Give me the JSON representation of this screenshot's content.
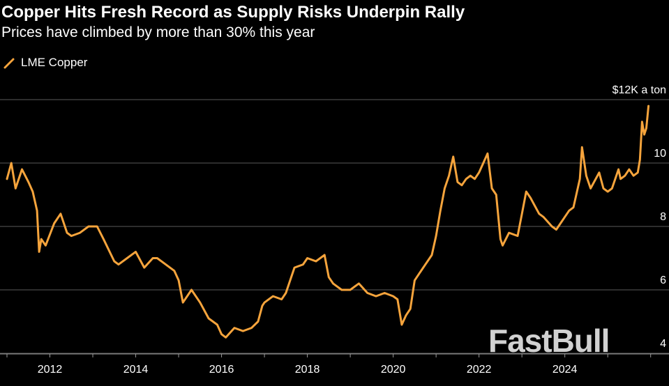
{
  "title": "Copper Hits Fresh Record as Supply Risks Underpin Rally",
  "subtitle": "Prices have climbed by more than 30% this year",
  "watermark": "FastBull",
  "colors": {
    "background": "#000000",
    "series": "#f6a43c",
    "gridline": "#5a5a5a",
    "text": "#ffffff"
  },
  "chart_data": {
    "type": "line",
    "title": "Copper Hits Fresh Record as Supply Risks Underpin Rally",
    "subtitle": "Prices have climbed by more than 30% this year",
    "xlabel": "",
    "ylabel": "",
    "unit_label": "$12K a ton",
    "xlim": [
      2011.0,
      2026.2
    ],
    "ylim": [
      4,
      12
    ],
    "yticks": [
      4,
      6,
      8,
      10,
      12
    ],
    "ytick_labels": [
      "4",
      "6",
      "8",
      "10",
      "$12K a ton"
    ],
    "xticks": [
      2012,
      2014,
      2016,
      2018,
      2020,
      2022,
      2024
    ],
    "xtick_labels": [
      "2012",
      "2014",
      "2016",
      "2018",
      "2020",
      "2022",
      "2024"
    ],
    "grid": true,
    "legend_position": "top-left",
    "series": [
      {
        "name": "LME Copper",
        "x": [
          2011.0,
          2011.1,
          2011.2,
          2011.35,
          2011.5,
          2011.6,
          2011.7,
          2011.75,
          2011.8,
          2011.9,
          2012.1,
          2012.25,
          2012.4,
          2012.5,
          2012.7,
          2012.9,
          2013.1,
          2013.25,
          2013.5,
          2013.6,
          2013.8,
          2014.0,
          2014.2,
          2014.4,
          2014.5,
          2014.7,
          2014.9,
          2015.0,
          2015.1,
          2015.3,
          2015.5,
          2015.7,
          2015.9,
          2016.0,
          2016.1,
          2016.3,
          2016.5,
          2016.7,
          2016.85,
          2016.95,
          2017.0,
          2017.2,
          2017.4,
          2017.5,
          2017.7,
          2017.9,
          2018.0,
          2018.2,
          2018.4,
          2018.5,
          2018.6,
          2018.8,
          2019.0,
          2019.2,
          2019.4,
          2019.6,
          2019.8,
          2020.0,
          2020.1,
          2020.2,
          2020.3,
          2020.4,
          2020.5,
          2020.6,
          2020.7,
          2020.9,
          2021.0,
          2021.1,
          2021.2,
          2021.3,
          2021.4,
          2021.5,
          2021.6,
          2021.7,
          2021.8,
          2021.9,
          2022.0,
          2022.1,
          2022.2,
          2022.3,
          2022.4,
          2022.5,
          2022.55,
          2022.7,
          2022.9,
          2023.0,
          2023.1,
          2023.2,
          2023.4,
          2023.5,
          2023.7,
          2023.8,
          2023.9,
          2024.0,
          2024.1,
          2024.2,
          2024.35,
          2024.4,
          2024.5,
          2024.6,
          2024.8,
          2024.9,
          2025.0,
          2025.1,
          2025.2,
          2025.25,
          2025.3,
          2025.4,
          2025.5,
          2025.6,
          2025.7,
          2025.75,
          2025.8,
          2025.85,
          2025.9,
          2025.95
        ],
        "values": [
          9.5,
          10.0,
          9.2,
          9.8,
          9.4,
          9.1,
          8.5,
          7.2,
          7.6,
          7.4,
          8.1,
          8.4,
          7.8,
          7.7,
          7.8,
          8.0,
          8.0,
          7.6,
          6.9,
          6.8,
          7.0,
          7.2,
          6.7,
          7.0,
          7.0,
          6.8,
          6.6,
          6.3,
          5.6,
          6.0,
          5.6,
          5.1,
          4.9,
          4.6,
          4.5,
          4.8,
          4.7,
          4.8,
          5.0,
          5.5,
          5.6,
          5.8,
          5.7,
          5.9,
          6.7,
          6.8,
          7.0,
          6.9,
          7.1,
          6.4,
          6.2,
          6.0,
          6.0,
          6.2,
          5.9,
          5.8,
          5.9,
          5.8,
          5.7,
          4.9,
          5.2,
          5.4,
          6.3,
          6.5,
          6.7,
          7.1,
          7.7,
          8.5,
          9.2,
          9.6,
          10.2,
          9.4,
          9.3,
          9.5,
          9.6,
          9.5,
          9.7,
          10.0,
          10.3,
          9.2,
          9.0,
          7.6,
          7.4,
          7.8,
          7.7,
          8.4,
          9.1,
          8.9,
          8.4,
          8.3,
          8.0,
          7.9,
          8.1,
          8.3,
          8.5,
          8.6,
          9.5,
          10.5,
          9.6,
          9.2,
          9.7,
          9.2,
          9.1,
          9.2,
          9.6,
          9.8,
          9.5,
          9.6,
          9.8,
          9.6,
          9.7,
          10.1,
          11.3,
          10.9,
          11.1,
          11.8
        ]
      }
    ]
  }
}
